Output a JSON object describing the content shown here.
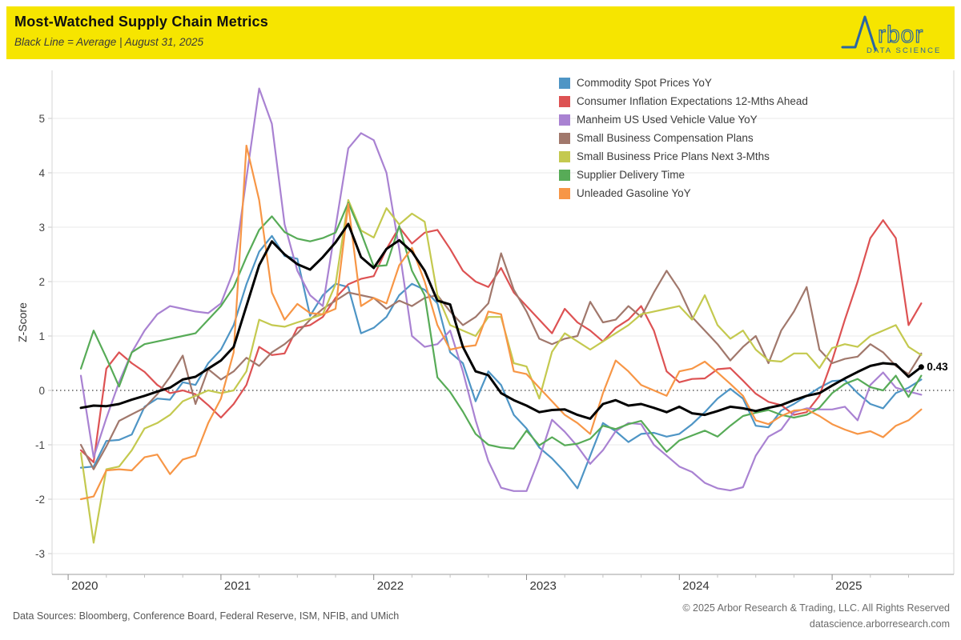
{
  "header": {
    "title": "Most-Watched Supply Chain Metrics",
    "subtitle": "Black Line = Average |  August 31, 2025",
    "logo_text": "rbor",
    "logo_subtext": "DATA SCIENCE",
    "colors": {
      "band_yellow": "#f6e500",
      "logo_blue": "#2b66a3"
    }
  },
  "chart_data": {
    "type": "line",
    "title": "Most-Watched Supply Chain Metrics",
    "subtitle": "Black Line = Average | August 31, 2025",
    "ylabel": "Z-Score",
    "ylim": [
      -3.38,
      5.88
    ],
    "yticks": [
      5,
      4,
      3,
      2,
      1,
      0,
      -1,
      -2,
      -3
    ],
    "zero_line_style": "dotted",
    "grid": "horizontal-light",
    "legend_position": "top-right-inside",
    "x_start": "2020-02",
    "x_end": "2025-08",
    "frequency": "monthly",
    "points": 67,
    "x_year_ticks": [
      "2020",
      "2021",
      "2022",
      "2023",
      "2024",
      "2025"
    ],
    "series": [
      {
        "name": "Commodity Spot Prices YoY",
        "color": "#4e95c5",
        "values": [
          -1.42,
          -1.4,
          -0.93,
          -0.91,
          -0.81,
          -0.3,
          -0.15,
          -0.17,
          0.15,
          0.1,
          0.5,
          0.75,
          1.2,
          1.95,
          2.55,
          2.84,
          2.47,
          2.42,
          1.37,
          1.75,
          1.96,
          1.9,
          1.05,
          1.15,
          1.35,
          1.75,
          1.96,
          1.85,
          1.6,
          0.7,
          0.5,
          -0.2,
          0.35,
          0.1,
          -0.45,
          -0.7,
          -1.05,
          -1.25,
          -1.5,
          -1.8,
          -1.2,
          -0.6,
          -0.75,
          -0.95,
          -0.8,
          -0.78,
          -0.85,
          -0.8,
          -0.62,
          -0.4,
          -0.15,
          0.03,
          -0.15,
          -0.65,
          -0.68,
          -0.37,
          -0.25,
          -0.1,
          0.05,
          0.17,
          0.19,
          -0.05,
          -0.25,
          -0.33,
          -0.05,
          0.05,
          0.2
        ]
      },
      {
        "name": "Consumer Inflation Expectations 12-Mths Ahead",
        "color": "#dd5253",
        "values": [
          -1.1,
          -1.32,
          0.4,
          0.7,
          0.5,
          0.34,
          0.1,
          -0.05,
          0.0,
          -0.07,
          -0.27,
          -0.5,
          -0.25,
          0.1,
          0.8,
          0.65,
          0.68,
          1.15,
          1.2,
          1.35,
          1.7,
          1.95,
          2.05,
          2.1,
          2.6,
          3.0,
          2.7,
          2.9,
          2.95,
          2.6,
          2.2,
          2.0,
          1.9,
          2.25,
          1.8,
          1.55,
          1.3,
          1.05,
          1.5,
          1.25,
          1.1,
          0.9,
          1.15,
          1.3,
          1.55,
          1.1,
          0.35,
          0.15,
          0.21,
          0.22,
          0.39,
          0.41,
          0.18,
          -0.06,
          -0.21,
          -0.27,
          -0.45,
          -0.4,
          -0.1,
          0.55,
          1.3,
          2.0,
          2.8,
          3.13,
          2.8,
          1.2,
          1.6
        ]
      },
      {
        "name": "Manheim US Used Vehicle Value YoY",
        "color": "#a982d2",
        "values": [
          0.27,
          -1.23,
          -0.51,
          0.15,
          0.7,
          1.1,
          1.4,
          1.55,
          1.5,
          1.45,
          1.42,
          1.6,
          2.2,
          3.9,
          5.55,
          4.9,
          3.05,
          2.2,
          1.75,
          1.55,
          3.0,
          4.45,
          4.73,
          4.6,
          4.0,
          2.6,
          1.0,
          0.8,
          0.85,
          1.1,
          0.35,
          -0.55,
          -1.3,
          -1.79,
          -1.85,
          -1.85,
          -1.25,
          -0.54,
          -0.76,
          -1.03,
          -1.35,
          -1.1,
          -0.75,
          -0.6,
          -0.62,
          -1.0,
          -1.2,
          -1.4,
          -1.5,
          -1.7,
          -1.8,
          -1.84,
          -1.78,
          -1.2,
          -0.85,
          -0.72,
          -0.4,
          -0.33,
          -0.35,
          -0.35,
          -0.3,
          -0.55,
          0.1,
          0.33,
          0.05,
          -0.02,
          -0.08
        ]
      },
      {
        "name": "Small Business Compensation Plans",
        "color": "#a1786c",
        "values": [
          -1.0,
          -1.45,
          -1.03,
          -0.56,
          -0.44,
          -0.32,
          -0.07,
          0.25,
          0.64,
          -0.25,
          0.39,
          0.2,
          0.35,
          0.6,
          0.45,
          0.7,
          0.85,
          1.05,
          1.3,
          1.5,
          1.65,
          1.8,
          1.75,
          1.7,
          1.5,
          1.65,
          1.55,
          1.7,
          1.75,
          1.45,
          1.2,
          1.35,
          1.6,
          2.52,
          1.85,
          1.45,
          0.95,
          0.85,
          0.95,
          1.0,
          1.63,
          1.25,
          1.3,
          1.55,
          1.35,
          1.8,
          2.2,
          1.85,
          1.35,
          1.1,
          0.85,
          0.55,
          0.8,
          1.0,
          0.5,
          1.1,
          1.45,
          1.9,
          0.75,
          0.5,
          0.58,
          0.62,
          0.85,
          0.7,
          0.45,
          0.3,
          0.68
        ]
      },
      {
        "name": "Small Business Price Plans Next 3-Mths",
        "color": "#c4c94f",
        "values": [
          -1.15,
          -2.8,
          -1.45,
          -1.4,
          -1.1,
          -0.7,
          -0.6,
          -0.45,
          -0.2,
          -0.1,
          0.0,
          -0.05,
          0.0,
          0.35,
          1.3,
          1.2,
          1.17,
          1.25,
          1.32,
          1.4,
          1.95,
          3.5,
          2.94,
          2.81,
          3.35,
          3.05,
          3.25,
          3.1,
          1.75,
          1.2,
          1.1,
          1.0,
          1.35,
          1.35,
          0.5,
          0.44,
          -0.15,
          0.71,
          1.05,
          0.9,
          0.75,
          0.9,
          1.05,
          1.2,
          1.4,
          1.45,
          1.5,
          1.55,
          1.3,
          1.75,
          1.2,
          0.95,
          1.1,
          0.75,
          0.55,
          0.53,
          0.68,
          0.68,
          0.41,
          0.78,
          0.85,
          0.8,
          1.0,
          1.1,
          1.2,
          0.8,
          0.65
        ]
      },
      {
        "name": "Supplier Delivery Time",
        "color": "#57ab57",
        "values": [
          0.4,
          1.1,
          0.6,
          0.07,
          0.7,
          0.85,
          0.9,
          0.95,
          1.0,
          1.05,
          1.3,
          1.55,
          1.9,
          2.45,
          2.95,
          3.2,
          2.91,
          2.79,
          2.74,
          2.8,
          2.9,
          3.45,
          2.9,
          2.28,
          2.3,
          3.02,
          2.2,
          1.75,
          0.24,
          -0.03,
          -0.39,
          -0.8,
          -1.0,
          -1.05,
          -1.07,
          -0.74,
          -1.01,
          -0.86,
          -1.01,
          -0.98,
          -0.89,
          -0.65,
          -0.71,
          -0.62,
          -0.56,
          -0.85,
          -1.13,
          -0.92,
          -0.83,
          -0.74,
          -0.85,
          -0.65,
          -0.47,
          -0.41,
          -0.36,
          -0.45,
          -0.5,
          -0.45,
          -0.32,
          -0.05,
          0.12,
          0.21,
          0.06,
          0.0,
          0.27,
          -0.12,
          0.27
        ]
      },
      {
        "name": "Unleaded Gasoline YoY",
        "color": "#f79646",
        "values": [
          -2.0,
          -1.95,
          -1.47,
          -1.45,
          -1.47,
          -1.23,
          -1.18,
          -1.54,
          -1.27,
          -1.2,
          -0.6,
          -0.15,
          0.7,
          4.5,
          3.5,
          1.8,
          1.3,
          1.59,
          1.42,
          1.4,
          1.5,
          3.43,
          1.55,
          1.7,
          1.6,
          2.3,
          2.62,
          2.0,
          1.2,
          0.75,
          0.8,
          0.83,
          1.45,
          1.4,
          0.35,
          0.3,
          0.05,
          -0.2,
          -0.45,
          -0.6,
          -0.8,
          -0.05,
          0.55,
          0.35,
          0.1,
          0.0,
          -0.1,
          0.35,
          0.4,
          0.53,
          0.33,
          0.12,
          -0.1,
          -0.55,
          -0.62,
          -0.47,
          -0.37,
          -0.35,
          -0.47,
          -0.62,
          -0.72,
          -0.8,
          -0.75,
          -0.86,
          -0.65,
          -0.55,
          -0.35
        ]
      }
    ],
    "average": {
      "name": "Average",
      "color": "#000000",
      "end_label": "0.43",
      "values": [
        -0.32,
        -0.28,
        -0.29,
        -0.25,
        -0.17,
        -0.1,
        -0.02,
        0.05,
        0.2,
        0.25,
        0.4,
        0.55,
        0.8,
        1.55,
        2.3,
        2.74,
        2.5,
        2.32,
        2.22,
        2.45,
        2.72,
        3.06,
        2.45,
        2.25,
        2.6,
        2.76,
        2.55,
        2.2,
        1.65,
        1.58,
        0.8,
        0.35,
        0.28,
        -0.05,
        -0.18,
        -0.28,
        -0.4,
        -0.36,
        -0.35,
        -0.45,
        -0.52,
        -0.25,
        -0.18,
        -0.28,
        -0.25,
        -0.32,
        -0.4,
        -0.3,
        -0.42,
        -0.45,
        -0.38,
        -0.3,
        -0.33,
        -0.38,
        -0.32,
        -0.27,
        -0.18,
        -0.1,
        -0.05,
        0.09,
        0.22,
        0.34,
        0.45,
        0.5,
        0.48,
        0.25,
        0.43
      ]
    }
  },
  "footer": {
    "sources": "Data Sources: Bloomberg, Conference Board, Federal Reserve, ISM, NFIB, and UMich",
    "copyright": "© 2025 Arbor Research & Trading, LLC. All Rights Reserved",
    "website": "datascience.arborresearch.com"
  }
}
